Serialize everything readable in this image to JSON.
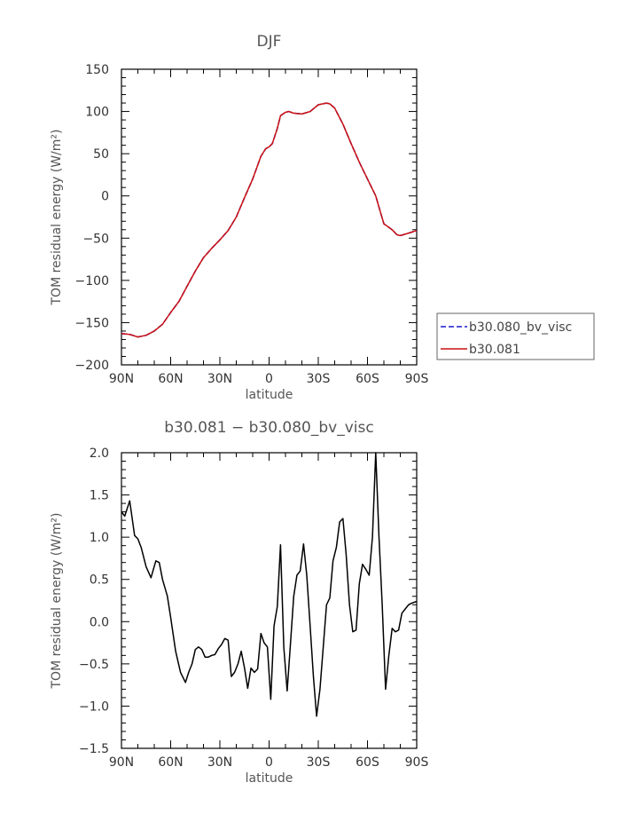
{
  "chart_data": [
    {
      "type": "line",
      "title": "DJF",
      "xlabel": "latitude",
      "ylabel": "TOM residual energy (W/m²)",
      "xlim": [
        -90,
        90
      ],
      "ylim": [
        -200,
        150
      ],
      "x_note": "x in degrees latitude; negative = N, positive = S",
      "xticks": [
        -90,
        -60,
        -30,
        0,
        30,
        60,
        90
      ],
      "xtick_labels": [
        "90N",
        "60N",
        "30N",
        "0",
        "30S",
        "60S",
        "90S"
      ],
      "yticks": [
        -200,
        -150,
        -100,
        -50,
        0,
        50,
        100,
        150
      ],
      "ytick_labels": [
        "−200",
        "−150",
        "−100",
        "−50",
        "0",
        "50",
        "100",
        "150"
      ],
      "legend_position": "right",
      "grid": false,
      "series": [
        {
          "name": "b30.080_bv_visc",
          "color": "#1a1acc",
          "dash": "dashed",
          "x": [
            -90,
            -85,
            -80,
            -75,
            -70,
            -65,
            -60,
            -55,
            -50,
            -45,
            -40,
            -35,
            -30,
            -25,
            -20,
            -15,
            -10,
            -5,
            -2,
            0,
            2,
            5,
            7,
            10,
            12,
            15,
            20,
            25,
            30,
            35,
            37,
            40,
            45,
            50,
            55,
            60,
            65,
            68,
            70,
            75,
            78,
            80,
            85,
            90
          ],
          "values": [
            -163,
            -164,
            -167,
            -165,
            -160,
            -152,
            -138,
            -125,
            -107,
            -89,
            -73,
            -62,
            -52,
            -41,
            -25,
            -2,
            20,
            47,
            56,
            58,
            62,
            80,
            95,
            99,
            100,
            98,
            97,
            100,
            108,
            110,
            109,
            104,
            85,
            62,
            40,
            20,
            0,
            -20,
            -33,
            -40,
            -46,
            -47,
            -44,
            -41
          ]
        },
        {
          "name": "b30.081",
          "color": "#cc1111",
          "dash": "solid",
          "x": [
            -90,
            -85,
            -80,
            -75,
            -70,
            -65,
            -60,
            -55,
            -50,
            -45,
            -40,
            -35,
            -30,
            -25,
            -20,
            -15,
            -10,
            -5,
            -2,
            0,
            2,
            5,
            7,
            10,
            12,
            15,
            20,
            25,
            30,
            35,
            37,
            40,
            45,
            50,
            55,
            60,
            65,
            68,
            70,
            75,
            78,
            80,
            85,
            90
          ],
          "values": [
            -163,
            -164,
            -167,
            -165,
            -160,
            -152,
            -138,
            -125,
            -107,
            -89,
            -73,
            -62,
            -52,
            -41,
            -25,
            -2,
            20,
            47,
            56,
            58,
            62,
            80,
            95,
            99,
            100,
            98,
            97,
            100,
            108,
            110,
            109,
            104,
            85,
            62,
            40,
            20,
            0,
            -20,
            -33,
            -40,
            -46,
            -47,
            -44,
            -41
          ]
        }
      ]
    },
    {
      "type": "line",
      "title": "b30.081 − b30.080_bv_visc",
      "xlabel": "latitude",
      "ylabel": "TOM residual energy (W/m²)",
      "xlim": [
        -90,
        90
      ],
      "ylim": [
        -1.5,
        2.0
      ],
      "xticks": [
        -90,
        -60,
        -30,
        0,
        30,
        60,
        90
      ],
      "xtick_labels": [
        "90N",
        "60N",
        "30N",
        "0",
        "30S",
        "60S",
        "90S"
      ],
      "yticks": [
        -1.5,
        -1.0,
        -0.5,
        0.0,
        0.5,
        1.0,
        1.5,
        2.0
      ],
      "ytick_labels": [
        "−1.5",
        "−1.0",
        "−0.5",
        "0.0",
        "0.5",
        "1.0",
        "1.5",
        "2.0"
      ],
      "grid": false,
      "series": [
        {
          "color": "#000000",
          "dash": "solid",
          "x": [
            -90,
            -88,
            -85,
            -82,
            -80,
            -78,
            -75,
            -72,
            -69,
            -67,
            -65,
            -62,
            -60,
            -57,
            -54,
            -51,
            -49,
            -47,
            -45,
            -43,
            -41,
            -39,
            -37,
            -35,
            -33,
            -31,
            -29,
            -27,
            -25,
            -23,
            -21,
            -19,
            -17,
            -15,
            -13,
            -11,
            -9,
            -7,
            -5,
            -3,
            -1,
            1,
            3,
            5,
            7,
            9,
            11,
            13,
            15,
            17,
            19,
            21,
            23,
            25,
            27,
            29,
            31,
            33,
            35,
            37,
            39,
            41,
            43,
            45,
            47,
            49,
            51,
            53,
            55,
            57,
            59,
            61,
            63,
            65,
            67,
            69,
            71,
            73,
            75,
            77,
            79,
            81,
            83,
            85,
            87,
            90
          ],
          "values": [
            1.3,
            1.25,
            1.43,
            1.02,
            0.98,
            0.88,
            0.65,
            0.52,
            0.72,
            0.7,
            0.5,
            0.3,
            0.05,
            -0.35,
            -0.6,
            -0.72,
            -0.6,
            -0.5,
            -0.33,
            -0.3,
            -0.33,
            -0.42,
            -0.42,
            -0.4,
            -0.39,
            -0.32,
            -0.27,
            -0.2,
            -0.22,
            -0.65,
            -0.6,
            -0.5,
            -0.35,
            -0.55,
            -0.79,
            -0.55,
            -0.6,
            -0.56,
            -0.14,
            -0.25,
            -0.3,
            -0.92,
            -0.05,
            0.18,
            0.91,
            -0.3,
            -0.82,
            -0.28,
            0.3,
            0.55,
            0.6,
            0.92,
            0.55,
            -0.05,
            -0.65,
            -1.12,
            -0.8,
            -0.3,
            0.2,
            0.28,
            0.72,
            0.88,
            1.18,
            1.22,
            0.8,
            0.2,
            -0.12,
            -0.1,
            0.45,
            0.68,
            0.62,
            0.55,
            1.0,
            2.0,
            1.02,
            0.2,
            -0.8,
            -0.4,
            -0.08,
            -0.12,
            -0.1,
            0.1,
            0.15,
            0.2,
            0.22,
            0.24
          ]
        }
      ]
    }
  ]
}
